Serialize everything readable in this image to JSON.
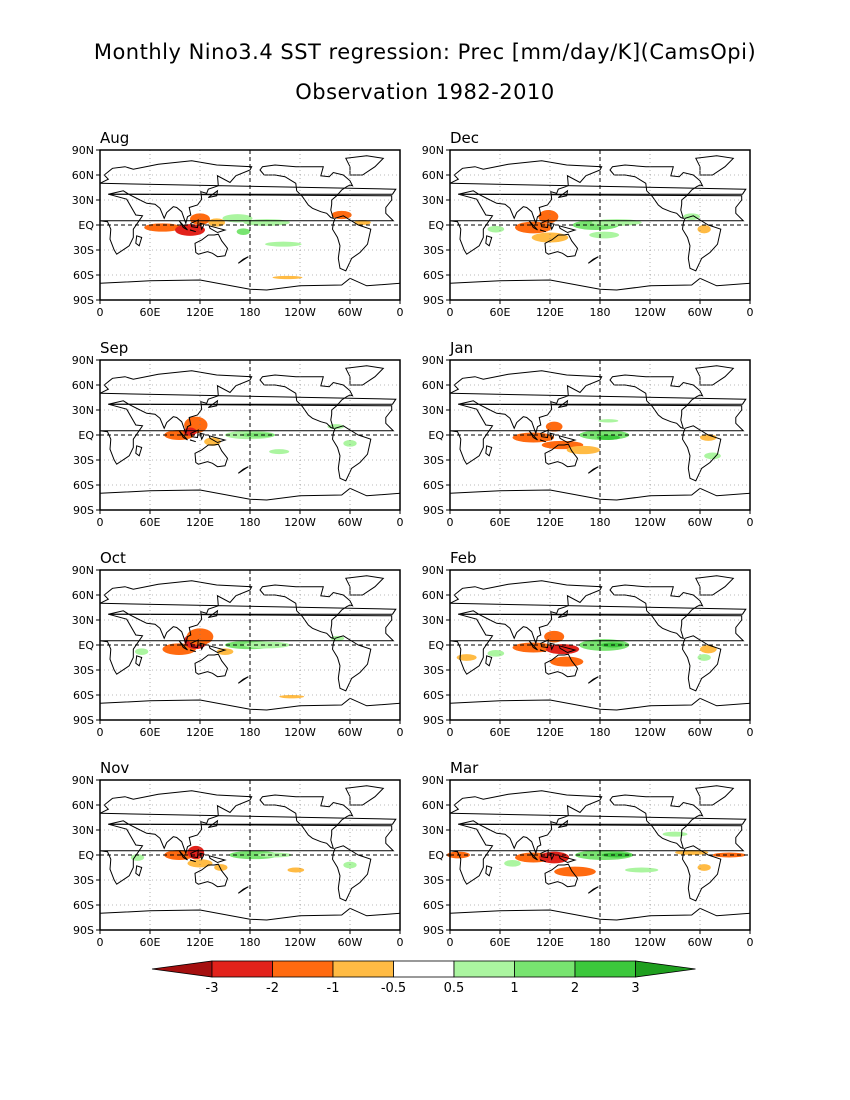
{
  "title_line1": "Monthly Nino3.4 SST regression: Prec [mm/day/K](CamsOpi)",
  "title_line2": "Observation 1982-2010",
  "lat_labels": [
    "90N",
    "60N",
    "30N",
    "EQ",
    "30S",
    "60S",
    "90S"
  ],
  "lon_labels": [
    "0",
    "60E",
    "120E",
    "180",
    "120W",
    "60W",
    "0"
  ],
  "panels": [
    {
      "month": "Aug",
      "column": 0,
      "row": 0
    },
    {
      "month": "Dec",
      "column": 1,
      "row": 0
    },
    {
      "month": "Sep",
      "column": 0,
      "row": 1
    },
    {
      "month": "Jan",
      "column": 1,
      "row": 1
    },
    {
      "month": "Oct",
      "column": 0,
      "row": 2
    },
    {
      "month": "Feb",
      "column": 1,
      "row": 2
    },
    {
      "month": "Nov",
      "column": 0,
      "row": 3
    },
    {
      "month": "Mar",
      "column": 1,
      "row": 3
    }
  ],
  "colorbar": {
    "levels": [
      "-3",
      "-2",
      "-1",
      "-0.5",
      "0.5",
      "1",
      "2",
      "3"
    ],
    "colors": [
      "#a50f0f",
      "#e2221b",
      "#ff6a10",
      "#ffbb44",
      "#ffffff",
      "#abf5a0",
      "#78e470",
      "#3cc83c",
      "#1f9f1f"
    ]
  },
  "colors": {
    "green_light": "#abf5a0",
    "green_mid": "#78e470",
    "green_dark": "#3cc83c",
    "orange_light": "#ffbb44",
    "orange_mid": "#ff6a10",
    "red": "#e2221b"
  }
}
